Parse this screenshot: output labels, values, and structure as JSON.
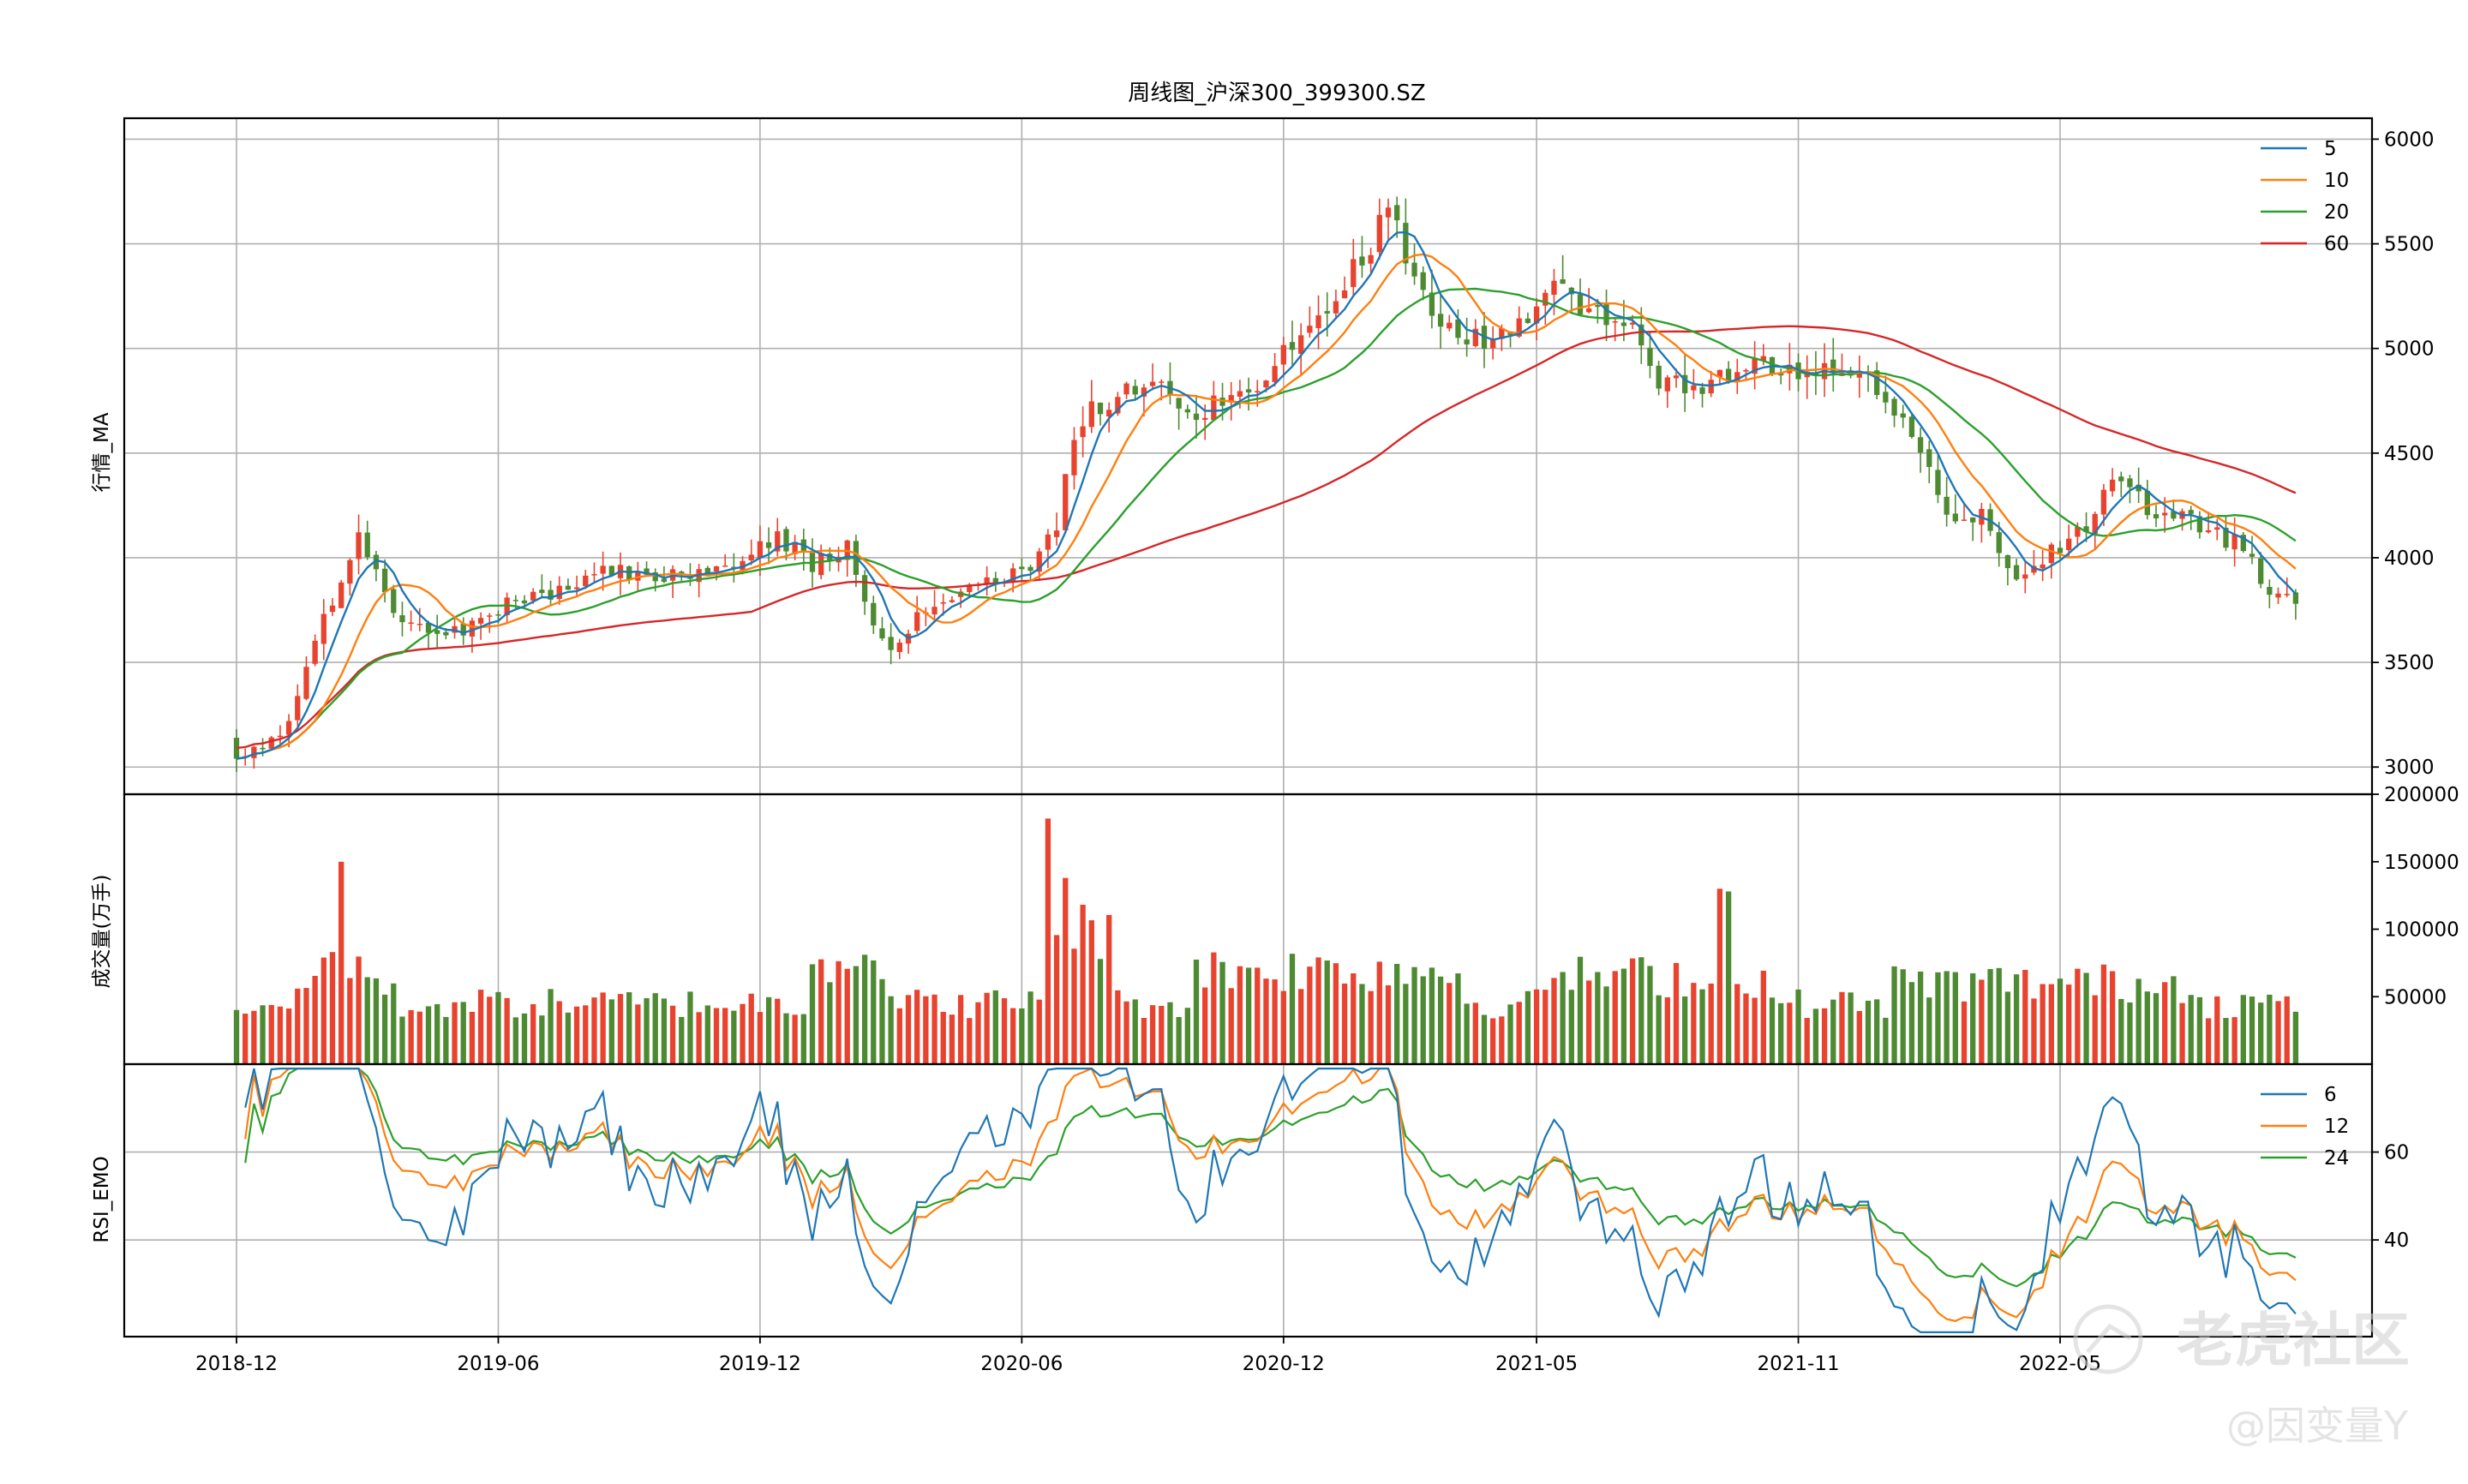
{
  "chart_data": {
    "type": "candlestick",
    "title": "周线图_沪深300_399300.SZ",
    "x_tick_labels": [
      "2018-12",
      "2019-06",
      "2019-12",
      "2020-06",
      "2020-12",
      "2021-05",
      "2021-11",
      "2022-05"
    ],
    "x_tick_week_index": [
      0,
      30,
      60,
      90,
      120,
      149,
      179,
      209
    ],
    "weeks": 237,
    "colors": {
      "up": "#e8432f",
      "down": "#4d8a32",
      "ma5": "#1f77b4",
      "ma10": "#ff7f0e",
      "ma20": "#2ca02c",
      "ma60": "#d62728",
      "grid": "#b0b0b0"
    },
    "price_panel": {
      "ylabel": "行情_MA",
      "ylim": [
        2870,
        6100
      ],
      "yticks": [
        3000,
        3500,
        4000,
        4500,
        5000,
        5500,
        6000
      ],
      "legend": [
        "5",
        "10",
        "20",
        "60"
      ],
      "legend_position": "top-right",
      "close_anchors": [
        [
          0,
          3040
        ],
        [
          5,
          3130
        ],
        [
          10,
          3700
        ],
        [
          14,
          4120
        ],
        [
          16,
          3930
        ],
        [
          19,
          3700
        ],
        [
          24,
          3620
        ],
        [
          30,
          3760
        ],
        [
          36,
          3820
        ],
        [
          42,
          3930
        ],
        [
          50,
          3920
        ],
        [
          55,
          3940
        ],
        [
          62,
          4100
        ],
        [
          66,
          3970
        ],
        [
          70,
          4050
        ],
        [
          73,
          3700
        ],
        [
          75,
          3590
        ],
        [
          80,
          3800
        ],
        [
          85,
          3890
        ],
        [
          90,
          3920
        ],
        [
          94,
          4120
        ],
        [
          96,
          4600
        ],
        [
          98,
          4700
        ],
        [
          104,
          4850
        ],
        [
          110,
          4700
        ],
        [
          115,
          4760
        ],
        [
          120,
          4980
        ],
        [
          126,
          5250
        ],
        [
          130,
          5500
        ],
        [
          132,
          5700
        ],
        [
          134,
          5450
        ],
        [
          138,
          5100
        ],
        [
          143,
          5030
        ],
        [
          148,
          5170
        ],
        [
          151,
          5300
        ],
        [
          155,
          5170
        ],
        [
          160,
          5080
        ],
        [
          163,
          4850
        ],
        [
          168,
          4820
        ],
        [
          175,
          4920
        ],
        [
          180,
          4880
        ],
        [
          186,
          4930
        ],
        [
          190,
          4700
        ],
        [
          193,
          4480
        ],
        [
          197,
          4150
        ],
        [
          200,
          4200
        ],
        [
          204,
          3920
        ],
        [
          207,
          4000
        ],
        [
          212,
          4150
        ],
        [
          215,
          4420
        ],
        [
          219,
          4250
        ],
        [
          225,
          4150
        ],
        [
          230,
          4050
        ],
        [
          233,
          3850
        ],
        [
          236,
          3760
        ]
      ],
      "last_close": 3780
    },
    "volume_panel": {
      "ylabel": "成交量(万手)",
      "ylim": [
        0,
        200000
      ],
      "yticks": [
        50000,
        100000,
        150000,
        200000
      ],
      "peaks_approx": [
        [
          12,
          150000
        ],
        [
          93,
          182000
        ],
        [
          95,
          138000
        ],
        [
          170,
          130000
        ],
        [
          171,
          128000
        ]
      ]
    },
    "rsi_panel": {
      "ylabel": "RSI_EMO",
      "ylim": [
        18,
        80
      ],
      "yticks": [
        40,
        60
      ],
      "legend": [
        "6",
        "12",
        "24"
      ],
      "legend_position": "top-right"
    }
  },
  "watermark": {
    "brand": "老虎社区",
    "handle": "@因变量Y"
  }
}
